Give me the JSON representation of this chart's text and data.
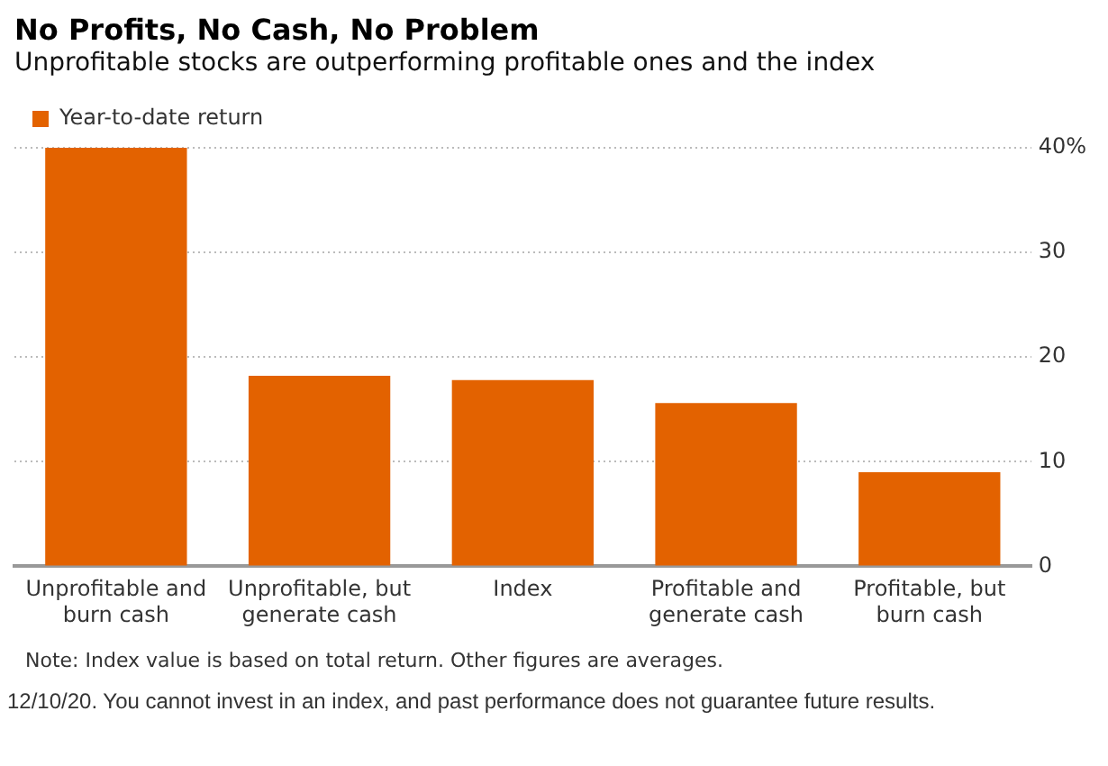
{
  "chart_data": {
    "type": "bar",
    "title": "No Profits, No Cash, No Problem",
    "subtitle": "Unprofitable stocks are outperforming profitable ones and the index",
    "categories": [
      "Unprofitable and burn cash",
      "Unprofitable, but generate cash",
      "Index",
      "Profitable and generate cash",
      "Profitable, but burn cash"
    ],
    "series": [
      {
        "name": "Year-to-date return",
        "color": "#e36200",
        "values": [
          40,
          18.2,
          17.8,
          15.6,
          9.0
        ]
      }
    ],
    "ylim": [
      0,
      40
    ],
    "yticks": [
      0,
      10,
      20,
      30,
      {
        "value": 40,
        "label": "40%"
      }
    ],
    "grid": "y",
    "legend": "top left",
    "annotations": [
      "Note: Index value is based on total return. Other figures are averages.",
      "12/10/20. You cannot invest in an index, and past performance does not guarantee future results."
    ]
  }
}
